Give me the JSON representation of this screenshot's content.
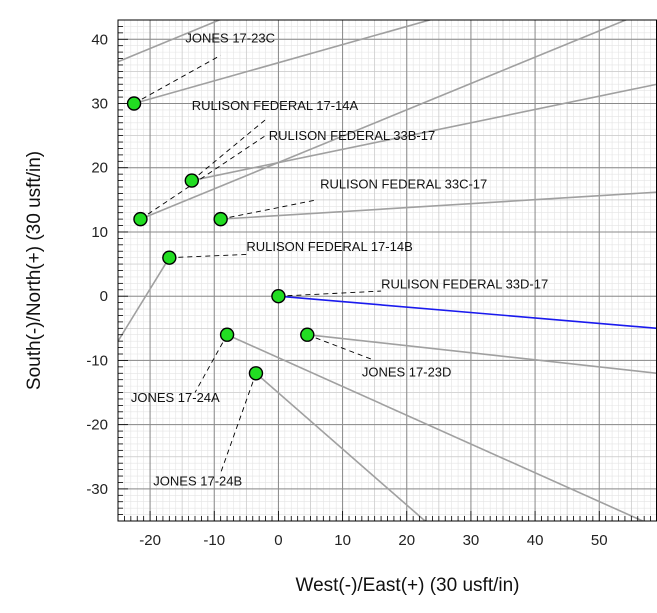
{
  "chart_data": {
    "type": "scatter",
    "title": "",
    "xlabel": "West(-)/East(+) (30 usft/in)",
    "ylabel": "South(-)/North(+) (30 usft/in)",
    "xlim": [
      -25,
      59
    ],
    "ylim": [
      -35,
      43
    ],
    "xticks": [
      -20,
      -10,
      0,
      10,
      20,
      30,
      40,
      50
    ],
    "yticks": [
      -30,
      -20,
      -10,
      0,
      10,
      20,
      30,
      40
    ],
    "grid": true,
    "colors": {
      "well_fill": "#22dd22",
      "trajectory": "#a0a0a0",
      "highlight_trajectory": "#1a1aee",
      "leader": "#000000"
    },
    "wells": [
      {
        "name": "JONES 17-23C",
        "x": -22.5,
        "y": 30,
        "label_x": -14.5,
        "label_y": 39.5,
        "leader_end": [
          -9,
          37.5
        ]
      },
      {
        "name": "RULISON FEDERAL 17-14A",
        "x": -13.5,
        "y": 18,
        "label_x": -13.5,
        "label_y": 29,
        "leader_end": [
          -2,
          27.5
        ]
      },
      {
        "name": "RULISON FEDERAL 33B-17",
        "x": -21.5,
        "y": 12,
        "label_x": -1.5,
        "label_y": 24.3,
        "leader_end": [
          -2,
          25
        ]
      },
      {
        "name": "RULISON FEDERAL 33C-17",
        "x": -9,
        "y": 12,
        "label_x": 6.5,
        "label_y": 16.8,
        "leader_end": [
          6,
          15
        ]
      },
      {
        "name": "RULISON FEDERAL 17-14B",
        "x": -17,
        "y": 6,
        "label_x": -5,
        "label_y": 7,
        "leader_end": [
          -5,
          6.5
        ]
      },
      {
        "name": "RULISON FEDERAL 33D-17",
        "x": 0,
        "y": 0,
        "label_x": 16,
        "label_y": 1.2,
        "leader_end": [
          16,
          0.8
        ]
      },
      {
        "name": "JONES 17-24A",
        "x": -8,
        "y": -6,
        "label_x": -23,
        "label_y": -16.5,
        "leader_end": [
          -13,
          -15
        ]
      },
      {
        "name": "JONES 17-23D",
        "x": 4.5,
        "y": -6,
        "label_x": 13,
        "label_y": -12.5,
        "leader_end": [
          15,
          -10
        ]
      },
      {
        "name": "JONES 17-24B",
        "x": -3.5,
        "y": -12,
        "label_x": -19.5,
        "label_y": -29.5,
        "leader_end": [
          -9,
          -27.5
        ]
      }
    ],
    "trajectories": [
      {
        "from": [
          -22.5,
          30
        ],
        "to": [
          59,
          53
        ],
        "highlight": false
      },
      {
        "from": [
          -13.5,
          18
        ],
        "to": [
          59,
          33
        ],
        "highlight": false
      },
      {
        "from": [
          -21.5,
          12
        ],
        "to": [
          59,
          45
        ],
        "highlight": false
      },
      {
        "from": [
          -9,
          12
        ],
        "to": [
          59,
          16.2
        ],
        "highlight": false
      },
      {
        "from": [
          -17,
          6
        ],
        "to": [
          -25,
          -7
        ],
        "highlight": false
      },
      {
        "from": [
          0,
          0
        ],
        "to": [
          59,
          -5
        ],
        "highlight": true
      },
      {
        "from": [
          -8,
          -6
        ],
        "to": [
          59,
          -36
        ],
        "highlight": false
      },
      {
        "from": [
          4.5,
          -6
        ],
        "to": [
          59,
          -12
        ],
        "highlight": false
      },
      {
        "from": [
          -3.5,
          -12
        ],
        "to": [
          24,
          -36
        ],
        "highlight": false
      },
      {
        "from": [
          -25,
          36.5
        ],
        "to": [
          -8,
          43.5
        ],
        "highlight": false
      }
    ]
  }
}
